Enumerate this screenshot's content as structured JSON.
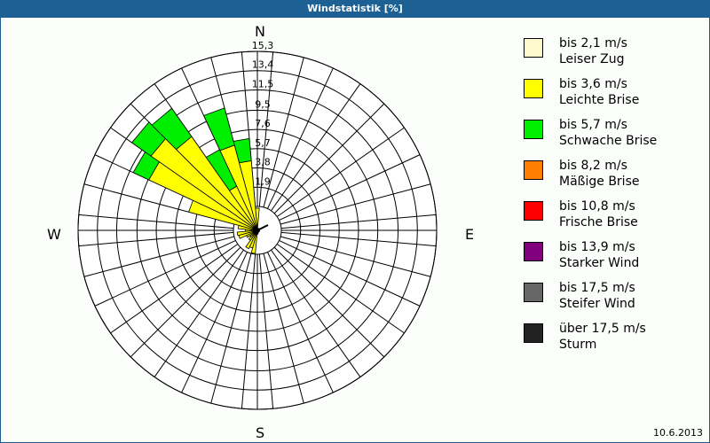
{
  "title": "Windstatistik [%]",
  "date": "10.6.2013",
  "compass": {
    "n": "N",
    "e": "E",
    "s": "S",
    "w": "W"
  },
  "ring_labels": [
    "1,9",
    "3,8",
    "5,7",
    "7,6",
    "9,5",
    "11,5",
    "13,4",
    "15,3"
  ],
  "legend": [
    {
      "range": "bis 2,1 m/s",
      "name": "Leiser Zug",
      "color": "#fffacd"
    },
    {
      "range": "bis 3,6 m/s",
      "name": "Leichte Brise",
      "color": "#ffff00"
    },
    {
      "range": "bis 5,7 m/s",
      "name": "Schwache Brise",
      "color": "#00ee00"
    },
    {
      "range": "bis 8,2 m/s",
      "name": "Mäßige Brise",
      "color": "#ff8000"
    },
    {
      "range": "bis 10,8 m/s",
      "name": "Frische Brise",
      "color": "#ff0000"
    },
    {
      "range": "bis 13,9 m/s",
      "name": "Starker Wind",
      "color": "#800080"
    },
    {
      "range": "bis 17,5 m/s",
      "name": "Steifer Wind",
      "color": "#666666"
    },
    {
      "range": "über 17,5 m/s",
      "name": "Sturm",
      "color": "#222222"
    }
  ],
  "chart_data": {
    "type": "wind-rose",
    "title": "Windstatistik [%]",
    "unit": "%",
    "radial_ticks": [
      1.9,
      3.8,
      5.7,
      7.6,
      9.5,
      11.5,
      13.4,
      15.3
    ],
    "rmax": 15.3,
    "sector_width_deg": 10,
    "directions_deg": [
      0,
      10,
      20,
      30,
      40,
      50,
      60,
      70,
      80,
      90,
      100,
      110,
      120,
      130,
      140,
      150,
      160,
      170,
      180,
      190,
      200,
      210,
      220,
      230,
      240,
      250,
      260,
      270,
      280,
      290,
      300,
      310,
      320,
      330,
      340,
      350
    ],
    "series": [
      {
        "name": "bis 2,1 m/s",
        "color": "#fffacd",
        "values": [
          0,
          0,
          0,
          0,
          0,
          0,
          0,
          0,
          0,
          0,
          0,
          0,
          0,
          0,
          0,
          0,
          0,
          0,
          0,
          0,
          0,
          0,
          0,
          0,
          0,
          0,
          0,
          0,
          0,
          0,
          0,
          0,
          0,
          0,
          0,
          0
        ]
      },
      {
        "name": "bis 3,6 m/s",
        "color": "#ffff00",
        "values": [
          2.2,
          0.2,
          0.2,
          0.1,
          0.1,
          0.1,
          0,
          0,
          0,
          0,
          0,
          0,
          0,
          0,
          0,
          0,
          0.2,
          0.3,
          0.4,
          2.3,
          1.8,
          2.0,
          1.2,
          0.9,
          1.2,
          1.9,
          2.0,
          1.2,
          1.9,
          7.0,
          11.8,
          12.8,
          11.3,
          4.8,
          8.7,
          6.9
        ]
      },
      {
        "name": "bis 5,7 m/s",
        "color": "#00ee00",
        "values": [
          0,
          0,
          0,
          0,
          0,
          0,
          0,
          0,
          0,
          0,
          0,
          0,
          0,
          0,
          0,
          0,
          0,
          0,
          0,
          0,
          0,
          0,
          0,
          0,
          0,
          0,
          0,
          0,
          0,
          0,
          1.7,
          2.3,
          3.4,
          4.0,
          3.8,
          2.2
        ]
      }
    ]
  }
}
